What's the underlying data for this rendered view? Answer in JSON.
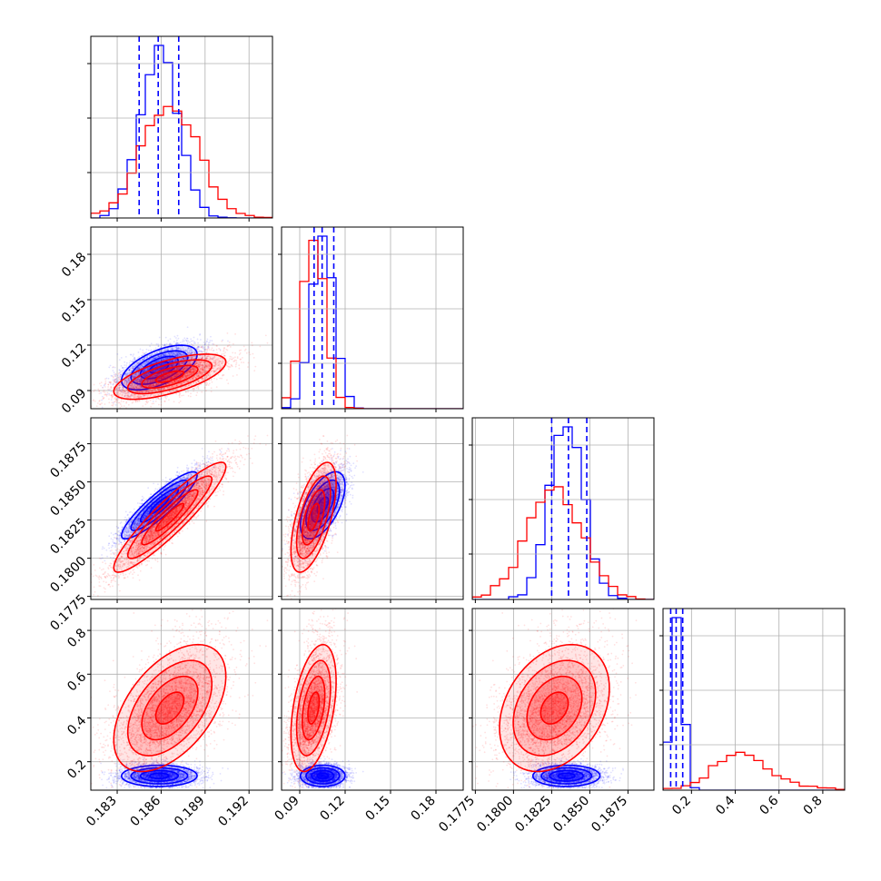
{
  "chart_data": {
    "type": "corner",
    "colors": {
      "series_a": "#0000ff",
      "series_b": "#ff0000",
      "grid": "#b0b0b0",
      "axes": "#000000"
    },
    "params": [
      {
        "range": [
          0.1812,
          0.1936
        ],
        "ticks": [
          0.183,
          0.186,
          0.189,
          0.192
        ],
        "tick_labels": [
          "0.183",
          "0.186",
          "0.189",
          "0.192"
        ]
      },
      {
        "range": [
          0.078,
          0.198
        ],
        "ticks": [
          0.09,
          0.12,
          0.15,
          0.18
        ],
        "tick_labels": [
          "0.09",
          "0.12",
          "0.15",
          "0.18"
        ]
      },
      {
        "range": [
          0.1773,
          0.1892
        ],
        "ticks": [
          0.1775,
          0.18,
          0.1825,
          0.185,
          0.1875
        ],
        "tick_labels": [
          "0.1775",
          "0.1800",
          "0.1825",
          "0.1850",
          "0.1875"
        ]
      },
      {
        "range": [
          0.07,
          0.9
        ],
        "ticks": [
          0.2,
          0.4,
          0.6,
          0.8
        ],
        "tick_labels": [
          "0.2",
          "0.4",
          "0.6",
          "0.8"
        ]
      }
    ],
    "series": [
      {
        "color": "#0000ff",
        "mean": [
          0.1859,
          0.1053,
          0.1835,
          0.135
        ],
        "sd": [
          0.0013,
          0.0075,
          0.0011,
          0.025
        ],
        "corr": [
          [
            1,
            0.6,
            0.9,
            0
          ],
          [
            0.6,
            1,
            0.6,
            0
          ],
          [
            0.9,
            0.6,
            1,
            0
          ],
          [
            0,
            0,
            0,
            1
          ]
        ],
        "quantiles": [
          [
            0.1845,
            0.1858,
            0.1872
          ],
          [
            0.0995,
            0.1048,
            0.1125
          ],
          [
            0.1825,
            0.1836,
            0.1848
          ],
          [
            0.105,
            0.13,
            0.16
          ]
        ]
      },
      {
        "color": "#ff0000",
        "mean": [
          0.1866,
          0.0992,
          0.1827,
          0.43
        ],
        "sd": [
          0.0019,
          0.0075,
          0.0018,
          0.12
        ],
        "corr": [
          [
            1,
            0.65,
            0.92,
            0.5
          ],
          [
            0.65,
            1,
            0.6,
            0.45
          ],
          [
            0.92,
            0.6,
            1,
            0.3
          ],
          [
            0.5,
            0.45,
            0.3,
            1
          ]
        ],
        "quantiles": []
      }
    ]
  }
}
